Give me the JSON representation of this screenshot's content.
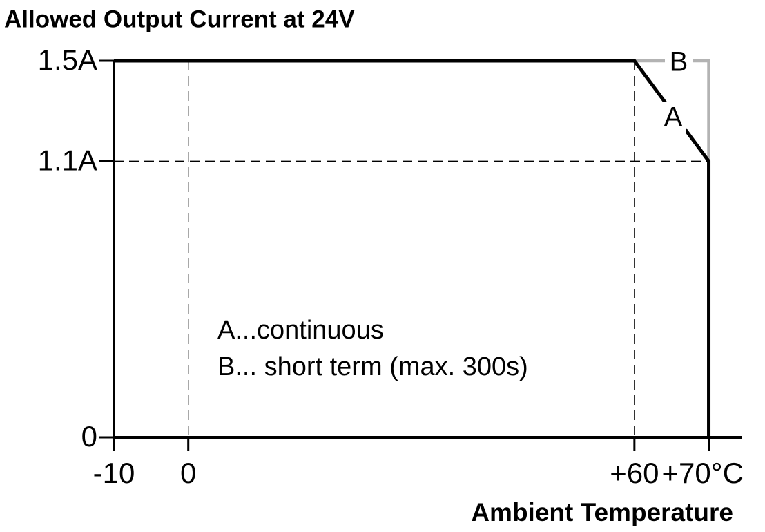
{
  "chart_data": {
    "type": "line",
    "title": "Allowed Output Current at 24V",
    "x_label": "Ambient Temperature",
    "series": [
      {
        "name": "A",
        "color": "#000000",
        "x": [
          -10,
          60,
          70,
          70
        ],
        "values": [
          1.5,
          1.5,
          1.1,
          0
        ]
      },
      {
        "name": "B",
        "color": "#b3b3b3",
        "x": [
          60,
          70,
          70
        ],
        "values": [
          1.5,
          1.5,
          1.1
        ]
      }
    ],
    "annotations": [
      "A...continuous",
      "B... short term (max. 300s)"
    ],
    "xlim": [
      -10,
      74.5
    ],
    "ylim": [
      0,
      1.5
    ],
    "xticks": [
      {
        "value": -10,
        "label": "-10"
      },
      0,
      {
        "value": 60,
        "label": "+60"
      },
      {
        "value": 70,
        "label": "+70°C"
      }
    ],
    "yticks": [
      0,
      {
        "value": 1.1,
        "label": "1.1A"
      },
      {
        "value": 1.5,
        "label": "1.5A"
      }
    ],
    "grid": true
  }
}
